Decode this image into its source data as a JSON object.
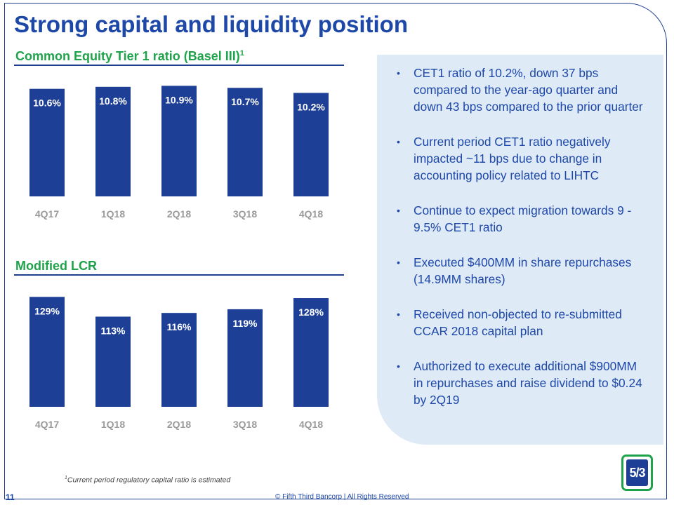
{
  "page": {
    "title": "Strong capital and liquidity position",
    "page_number": "11",
    "copyright": "© Fifth Third Bancorp | All Rights Reserved",
    "footnote_marker": "1",
    "footnote_text": "Current period regulatory capital ratio is estimated",
    "logo_text": "5/3"
  },
  "colors": {
    "title": "#1e48a8",
    "section": "#1fa34a",
    "bar": "#1e3f96",
    "panel": "#dfeaf7"
  },
  "bullets": [
    "CET1 ratio of 10.2%, down 37 bps compared to the year-ago quarter and down 43 bps compared to the prior quarter",
    "Current period CET1 ratio negatively impacted ~11 bps due to change in accounting policy related to LIHTC",
    "Continue to expect migration towards 9 - 9.5% CET1 ratio",
    "Executed $400MM in share repurchases (14.9MM shares)",
    "Received non-objected to re-submitted CCAR 2018 capital plan",
    "Authorized to execute additional $900MM in repurchases and raise dividend to $0.24 by 2Q19"
  ],
  "chart_data": [
    {
      "type": "bar",
      "title": "Common Equity Tier 1 ratio (Basel III)",
      "title_superscript": "1",
      "categories": [
        "4Q17",
        "1Q18",
        "2Q18",
        "3Q18",
        "4Q18"
      ],
      "values": [
        10.6,
        10.8,
        10.9,
        10.7,
        10.2
      ],
      "data_labels": [
        "10.6%",
        "10.8%",
        "10.9%",
        "10.7%",
        "10.2%"
      ],
      "ylim": [
        0,
        11.2
      ],
      "xlabel": "",
      "ylabel": ""
    },
    {
      "type": "bar",
      "title": "Modified LCR",
      "categories": [
        "4Q17",
        "1Q18",
        "2Q18",
        "3Q18",
        "4Q18"
      ],
      "values": [
        129,
        113,
        116,
        119,
        128
      ],
      "data_labels": [
        "129%",
        "113%",
        "116%",
        "119%",
        "128%"
      ],
      "ylim": [
        40,
        132
      ],
      "xlabel": "",
      "ylabel": ""
    }
  ]
}
